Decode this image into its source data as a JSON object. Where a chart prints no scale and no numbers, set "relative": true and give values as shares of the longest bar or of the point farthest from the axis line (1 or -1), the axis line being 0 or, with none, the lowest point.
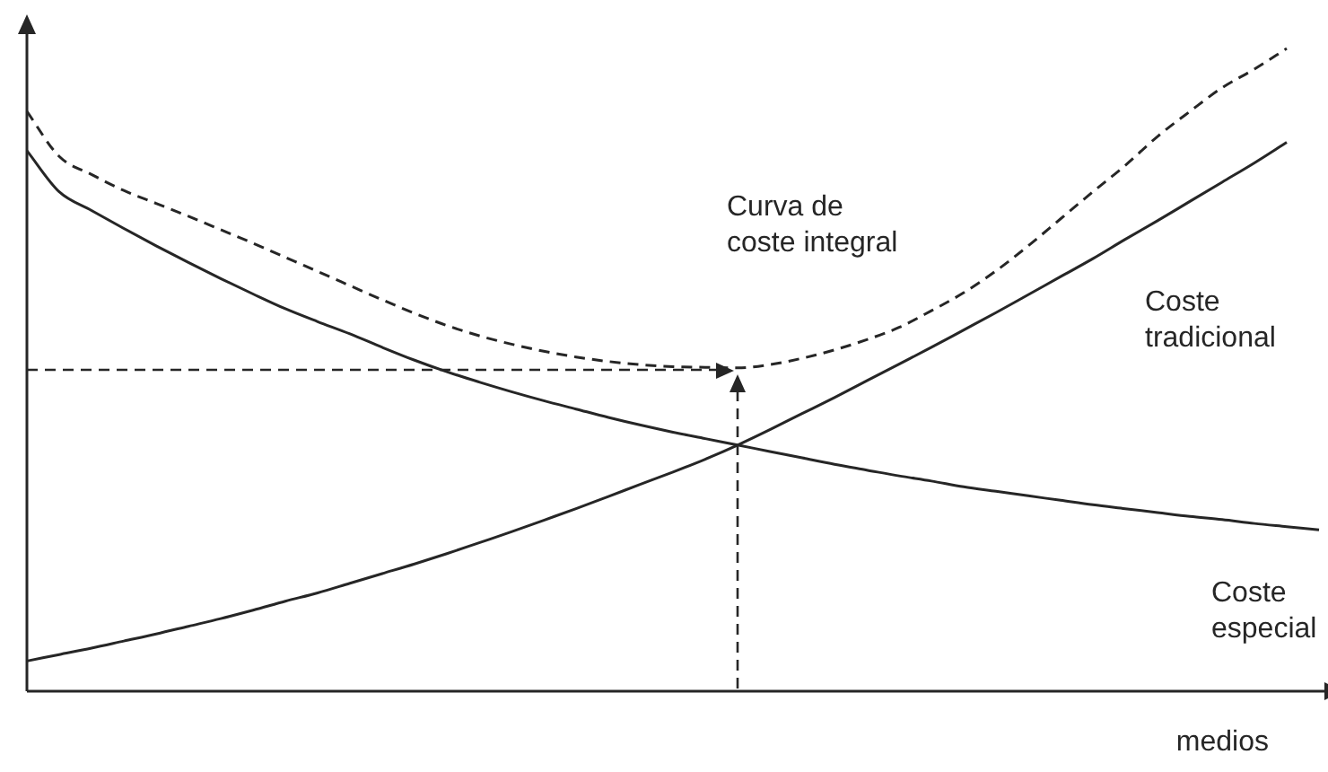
{
  "chart_data": {
    "type": "line",
    "xlabel": "medios",
    "relative": true,
    "legend": false,
    "grid": false,
    "tick_labels": false,
    "marker": "none",
    "line_style": "solid",
    "categories": [
      null,
      null,
      null,
      null,
      null,
      null,
      null,
      null,
      null,
      null,
      null,
      null,
      null,
      null,
      null,
      null,
      null,
      null,
      null,
      null,
      null,
      null,
      null,
      null,
      null,
      null,
      null,
      null,
      null,
      null,
      null,
      null,
      null,
      null,
      null,
      null,
      null,
      null,
      null,
      null,
      null
    ],
    "series": [
      {
        "name": "Curva de coste integral",
        "color": "#262626",
        "line_style": "dashed",
        "values": [
          0.902,
          0.832,
          0.804,
          0.779,
          0.759,
          0.739,
          0.718,
          0.697,
          0.675,
          0.653,
          0.631,
          0.609,
          0.588,
          0.569,
          0.553,
          0.54,
          0.529,
          0.52,
          0.513,
          0.508,
          0.505,
          0.504,
          0.503,
          0.508,
          0.518,
          0.531,
          0.547,
          0.566,
          0.592,
          0.62,
          0.654,
          0.693,
          0.735,
          0.777,
          0.818,
          0.863,
          0.902,
          0.939,
          0.968,
          1,
          null
        ]
      },
      {
        "name": "Coste tradicional",
        "color": "#262626",
        "values": [
          0.047,
          0.057,
          0.067,
          0.078,
          0.089,
          0.101,
          0.113,
          0.126,
          0.14,
          0.153,
          0.168,
          0.183,
          0.198,
          0.214,
          0.231,
          0.248,
          0.266,
          0.284,
          0.303,
          0.322,
          0.341,
          0.361,
          0.383,
          0.407,
          0.432,
          0.457,
          0.483,
          0.509,
          0.535,
          0.562,
          0.589,
          0.617,
          0.645,
          0.673,
          0.703,
          0.732,
          0.762,
          0.792,
          0.822,
          0.854,
          null
        ]
      },
      {
        "name": "Coste especial",
        "color": "#262626",
        "values": [
          0.841,
          0.777,
          0.748,
          0.72,
          0.693,
          0.667,
          0.642,
          0.618,
          0.595,
          0.575,
          0.556,
          0.535,
          0.515,
          0.497,
          0.481,
          0.466,
          0.452,
          0.439,
          0.426,
          0.414,
          0.403,
          0.393,
          0.383,
          0.373,
          0.363,
          0.353,
          0.344,
          0.335,
          0.327,
          0.318,
          0.311,
          0.304,
          0.297,
          0.29,
          0.284,
          0.278,
          0.272,
          0.267,
          0.261,
          0.256,
          0.251
        ]
      }
    ],
    "ref_lines": [
      {
        "axis": "y",
        "value": 0.5,
        "color": "#262626",
        "line_style": "dashed"
      }
    ]
  }
}
